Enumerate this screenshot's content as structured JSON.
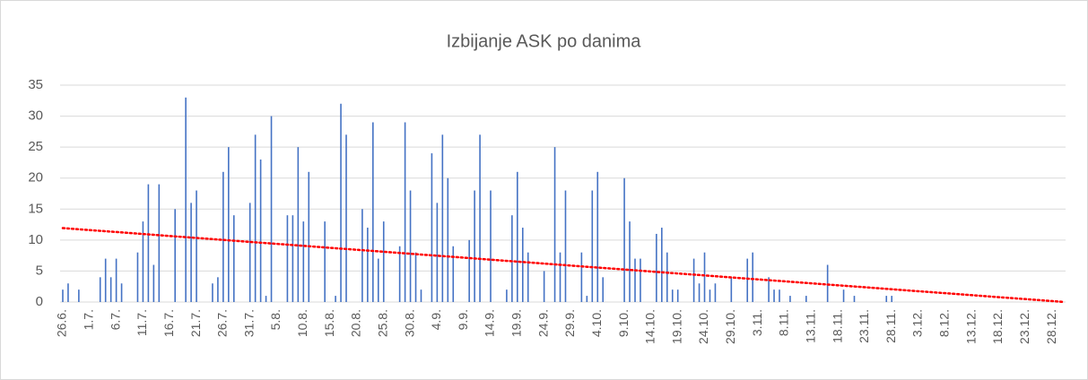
{
  "chart_data": {
    "type": "bar",
    "title": "Izbijanje ASK po danima",
    "categories": [
      "26.6.",
      null,
      null,
      null,
      null,
      "1.7.",
      null,
      null,
      null,
      null,
      "6.7.",
      null,
      null,
      null,
      null,
      "11.7.",
      null,
      null,
      null,
      null,
      "16.7.",
      null,
      null,
      null,
      null,
      "21.7.",
      null,
      null,
      null,
      null,
      "26.7.",
      null,
      null,
      null,
      null,
      "31.7.",
      null,
      null,
      null,
      null,
      "5.8.",
      null,
      null,
      null,
      null,
      "10.8.",
      null,
      null,
      null,
      null,
      "15.8.",
      null,
      null,
      null,
      null,
      "20.8.",
      null,
      null,
      null,
      null,
      "25.8.",
      null,
      null,
      null,
      null,
      "30.8.",
      null,
      null,
      null,
      null,
      "4.9.",
      null,
      null,
      null,
      null,
      "9.9.",
      null,
      null,
      null,
      null,
      "14.9.",
      null,
      null,
      null,
      null,
      "19.9.",
      null,
      null,
      null,
      null,
      "24.9.",
      null,
      null,
      null,
      null,
      "29.9.",
      null,
      null,
      null,
      null,
      "4.10.",
      null,
      null,
      null,
      null,
      "9.10.",
      null,
      null,
      null,
      null,
      "14.10.",
      null,
      null,
      null,
      null,
      "19.10.",
      null,
      null,
      null,
      null,
      "24.10.",
      null,
      null,
      null,
      null,
      "29.10.",
      null,
      null,
      null,
      null,
      "3.11.",
      null,
      null,
      null,
      null,
      "8.11.",
      null,
      null,
      null,
      null,
      "13.11.",
      null,
      null,
      null,
      null,
      "18.11.",
      null,
      null,
      null,
      null,
      "23.11.",
      null,
      null,
      null,
      null,
      "28.11.",
      null,
      null,
      null,
      null,
      "3.12.",
      null,
      null,
      null,
      null,
      "8.12.",
      null,
      null,
      null,
      null,
      "13.12.",
      null,
      null,
      null,
      null,
      "18.12.",
      null,
      null,
      null,
      null,
      "23.12.",
      null,
      null,
      null,
      null,
      "28.12.",
      null,
      null
    ],
    "values": [
      2,
      3,
      0,
      2,
      0,
      0,
      0,
      4,
      7,
      4,
      7,
      3,
      0,
      0,
      8,
      13,
      19,
      6,
      19,
      0,
      0,
      15,
      0,
      33,
      16,
      18,
      0,
      0,
      3,
      4,
      21,
      25,
      14,
      0,
      0,
      16,
      27,
      23,
      1,
      30,
      0,
      0,
      14,
      14,
      25,
      13,
      21,
      0,
      0,
      13,
      0,
      1,
      32,
      27,
      0,
      0,
      15,
      12,
      29,
      7,
      13,
      0,
      0,
      9,
      29,
      18,
      8,
      2,
      0,
      24,
      16,
      27,
      20,
      9,
      0,
      0,
      10,
      18,
      27,
      0,
      18,
      0,
      0,
      2,
      14,
      21,
      12,
      8,
      0,
      0,
      5,
      0,
      25,
      8,
      18,
      0,
      0,
      8,
      1,
      18,
      21,
      4,
      0,
      0,
      0,
      20,
      13,
      7,
      7,
      0,
      0,
      11,
      12,
      8,
      2,
      2,
      0,
      0,
      7,
      3,
      8,
      2,
      3,
      0,
      0,
      4,
      0,
      0,
      7,
      8,
      0,
      0,
      4,
      2,
      2,
      0,
      1,
      0,
      0,
      1,
      0,
      0,
      0,
      6,
      0,
      0,
      2,
      0,
      1,
      0,
      0,
      0,
      0,
      0,
      1,
      1,
      0,
      0,
      0,
      0,
      0,
      0,
      0,
      0,
      0,
      0,
      0,
      0,
      0,
      0,
      0,
      0,
      0,
      0,
      0,
      0,
      0,
      0,
      0,
      0,
      0,
      0,
      0,
      0,
      0,
      0,
      0,
      0
    ],
    "color": "#4472c4",
    "ylim": [
      0,
      35
    ],
    "yticks": [
      0,
      5,
      10,
      15,
      20,
      25,
      30,
      35
    ],
    "grid": true,
    "trendline": {
      "kind": "linear",
      "color": "#ff0000"
    }
  }
}
